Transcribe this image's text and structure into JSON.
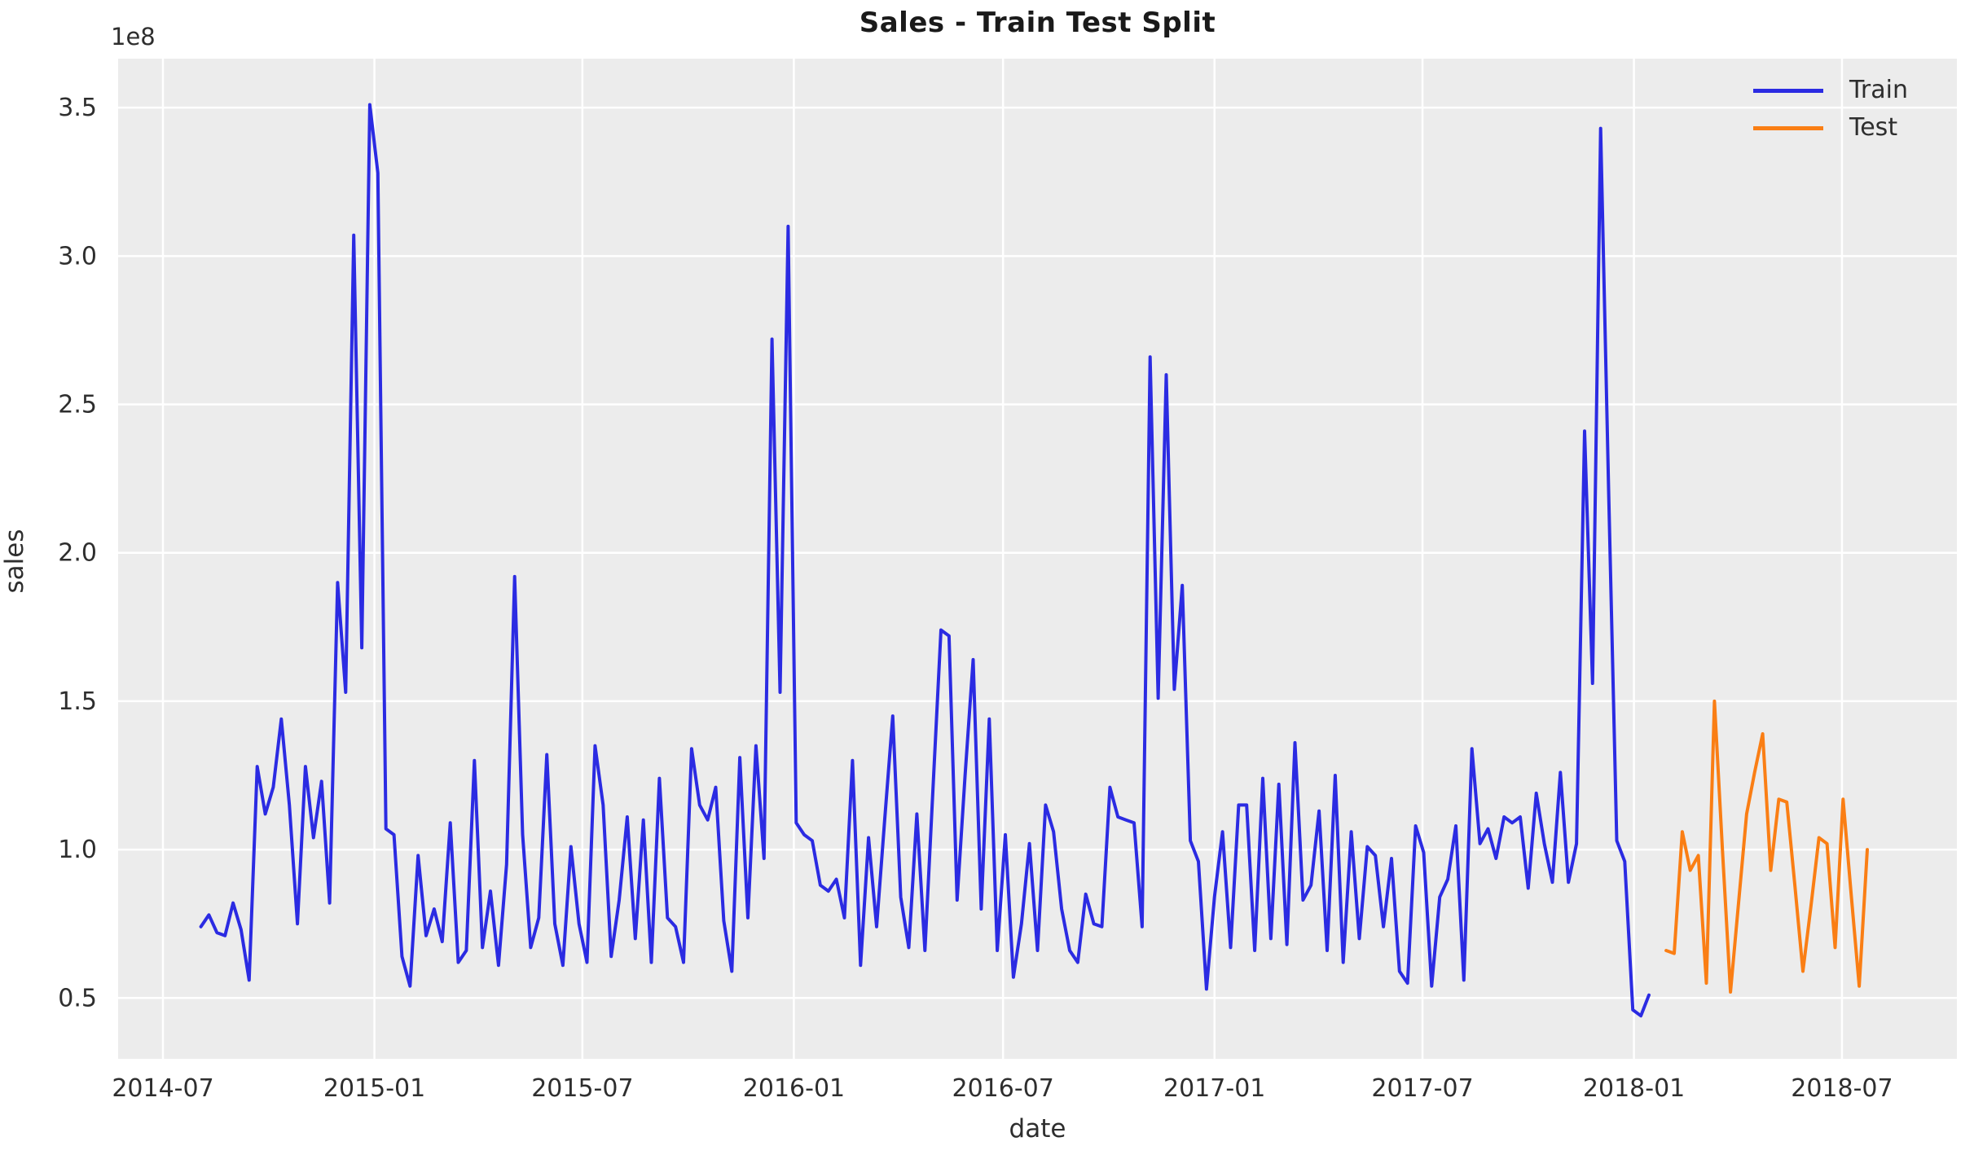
{
  "figure": {
    "title": "Sales - Train Test Split",
    "offset_text": "1e8",
    "xlabel": "date",
    "ylabel": "sales"
  },
  "legend": {
    "items": [
      {
        "label": "Train",
        "color": "#2b2be2"
      },
      {
        "label": "Test",
        "color": "#fa7e14"
      }
    ]
  },
  "colors": {
    "axes_background": "#ececec",
    "grid": "#ffffff",
    "tick_text": "#2e2e2e",
    "train_line": "#2b2be2",
    "test_line": "#fa7e14"
  },
  "chart_data": {
    "type": "line",
    "title": "Sales - Train Test Split",
    "xlabel": "date",
    "ylabel": "sales",
    "y_unit": "1e8",
    "cadence": "weekly",
    "grid": true,
    "legend_position": "upper right",
    "xlim": [
      "2014-05-23",
      "2018-10-09"
    ],
    "ylim": [
      0.295,
      3.665
    ],
    "x_ticks": [
      {
        "label": "2014-07",
        "date": "2014-07-01"
      },
      {
        "label": "2015-01",
        "date": "2015-01-01"
      },
      {
        "label": "2015-07",
        "date": "2015-07-01"
      },
      {
        "label": "2016-01",
        "date": "2016-01-01"
      },
      {
        "label": "2016-07",
        "date": "2016-07-01"
      },
      {
        "label": "2017-01",
        "date": "2017-01-01"
      },
      {
        "label": "2017-07",
        "date": "2017-07-01"
      },
      {
        "label": "2018-01",
        "date": "2018-01-01"
      },
      {
        "label": "2018-07",
        "date": "2018-07-01"
      }
    ],
    "y_ticks": [
      {
        "label": "0.5",
        "value": 0.5
      },
      {
        "label": "1.0",
        "value": 1.0
      },
      {
        "label": "1.5",
        "value": 1.5
      },
      {
        "label": "2.0",
        "value": 2.0
      },
      {
        "label": "2.5",
        "value": 2.5
      },
      {
        "label": "3.0",
        "value": 3.0
      },
      {
        "label": "3.5",
        "value": 3.5
      }
    ],
    "series": [
      {
        "name": "Train",
        "color": "#2b2be2",
        "start_date": "2014-08-03",
        "values": [
          0.74,
          0.78,
          0.72,
          0.71,
          0.82,
          0.73,
          0.56,
          1.28,
          1.12,
          1.21,
          1.44,
          1.15,
          0.75,
          1.28,
          1.04,
          1.23,
          0.82,
          1.9,
          1.53,
          3.07,
          1.68,
          3.51,
          3.28,
          1.07,
          1.05,
          0.64,
          0.54,
          0.98,
          0.71,
          0.8,
          0.69,
          1.09,
          0.62,
          0.66,
          1.3,
          0.67,
          0.86,
          0.61,
          0.95,
          1.92,
          1.05,
          0.67,
          0.77,
          1.32,
          0.75,
          0.61,
          1.01,
          0.75,
          0.62,
          1.35,
          1.15,
          0.64,
          0.83,
          1.11,
          0.7,
          1.1,
          0.62,
          1.24,
          0.77,
          0.74,
          0.62,
          1.34,
          1.15,
          1.1,
          1.21,
          0.76,
          0.59,
          1.31,
          0.77,
          1.35,
          0.97,
          2.72,
          1.53,
          3.1,
          1.09,
          1.05,
          1.03,
          0.88,
          0.86,
          0.9,
          0.77,
          1.3,
          0.61,
          1.04,
          0.74,
          1.1,
          1.45,
          0.84,
          0.67,
          1.12,
          0.66,
          1.2,
          1.74,
          1.72,
          0.83,
          1.25,
          1.64,
          0.8,
          1.44,
          0.66,
          1.05,
          0.57,
          0.75,
          1.02,
          0.66,
          1.15,
          1.06,
          0.8,
          0.66,
          0.62,
          0.85,
          0.75,
          0.74,
          1.21,
          1.11,
          1.1,
          1.09,
          0.74,
          2.66,
          1.51,
          2.6,
          1.54,
          1.89,
          1.03,
          0.96,
          0.53,
          0.84,
          1.06,
          0.67,
          1.15,
          1.15,
          0.66,
          1.24,
          0.7,
          1.22,
          0.68,
          1.36,
          0.83,
          0.88,
          1.13,
          0.66,
          1.25,
          0.62,
          1.06,
          0.7,
          1.01,
          0.98,
          0.74,
          0.97,
          0.59,
          0.55,
          1.08,
          0.99,
          0.54,
          0.84,
          0.9,
          1.08,
          0.56,
          1.34,
          1.02,
          1.07,
          0.97,
          1.11,
          1.09,
          1.11,
          0.87,
          1.19,
          1.02,
          0.89,
          1.26,
          0.89,
          1.02,
          2.41,
          1.56,
          3.43,
          2.2,
          1.03,
          0.96,
          0.46,
          0.44,
          0.51
        ]
      },
      {
        "name": "Test",
        "color": "#fa7e14",
        "start_date": "2018-01-29",
        "values": [
          0.66,
          0.65,
          1.06,
          0.93,
          0.98,
          0.55,
          1.5,
          1.0,
          0.52,
          0.82,
          1.12,
          1.26,
          1.39,
          0.93,
          1.17,
          1.16,
          0.88,
          0.59,
          0.81,
          1.04,
          1.02,
          0.67,
          1.17,
          0.85,
          0.54,
          1.0
        ]
      }
    ]
  }
}
